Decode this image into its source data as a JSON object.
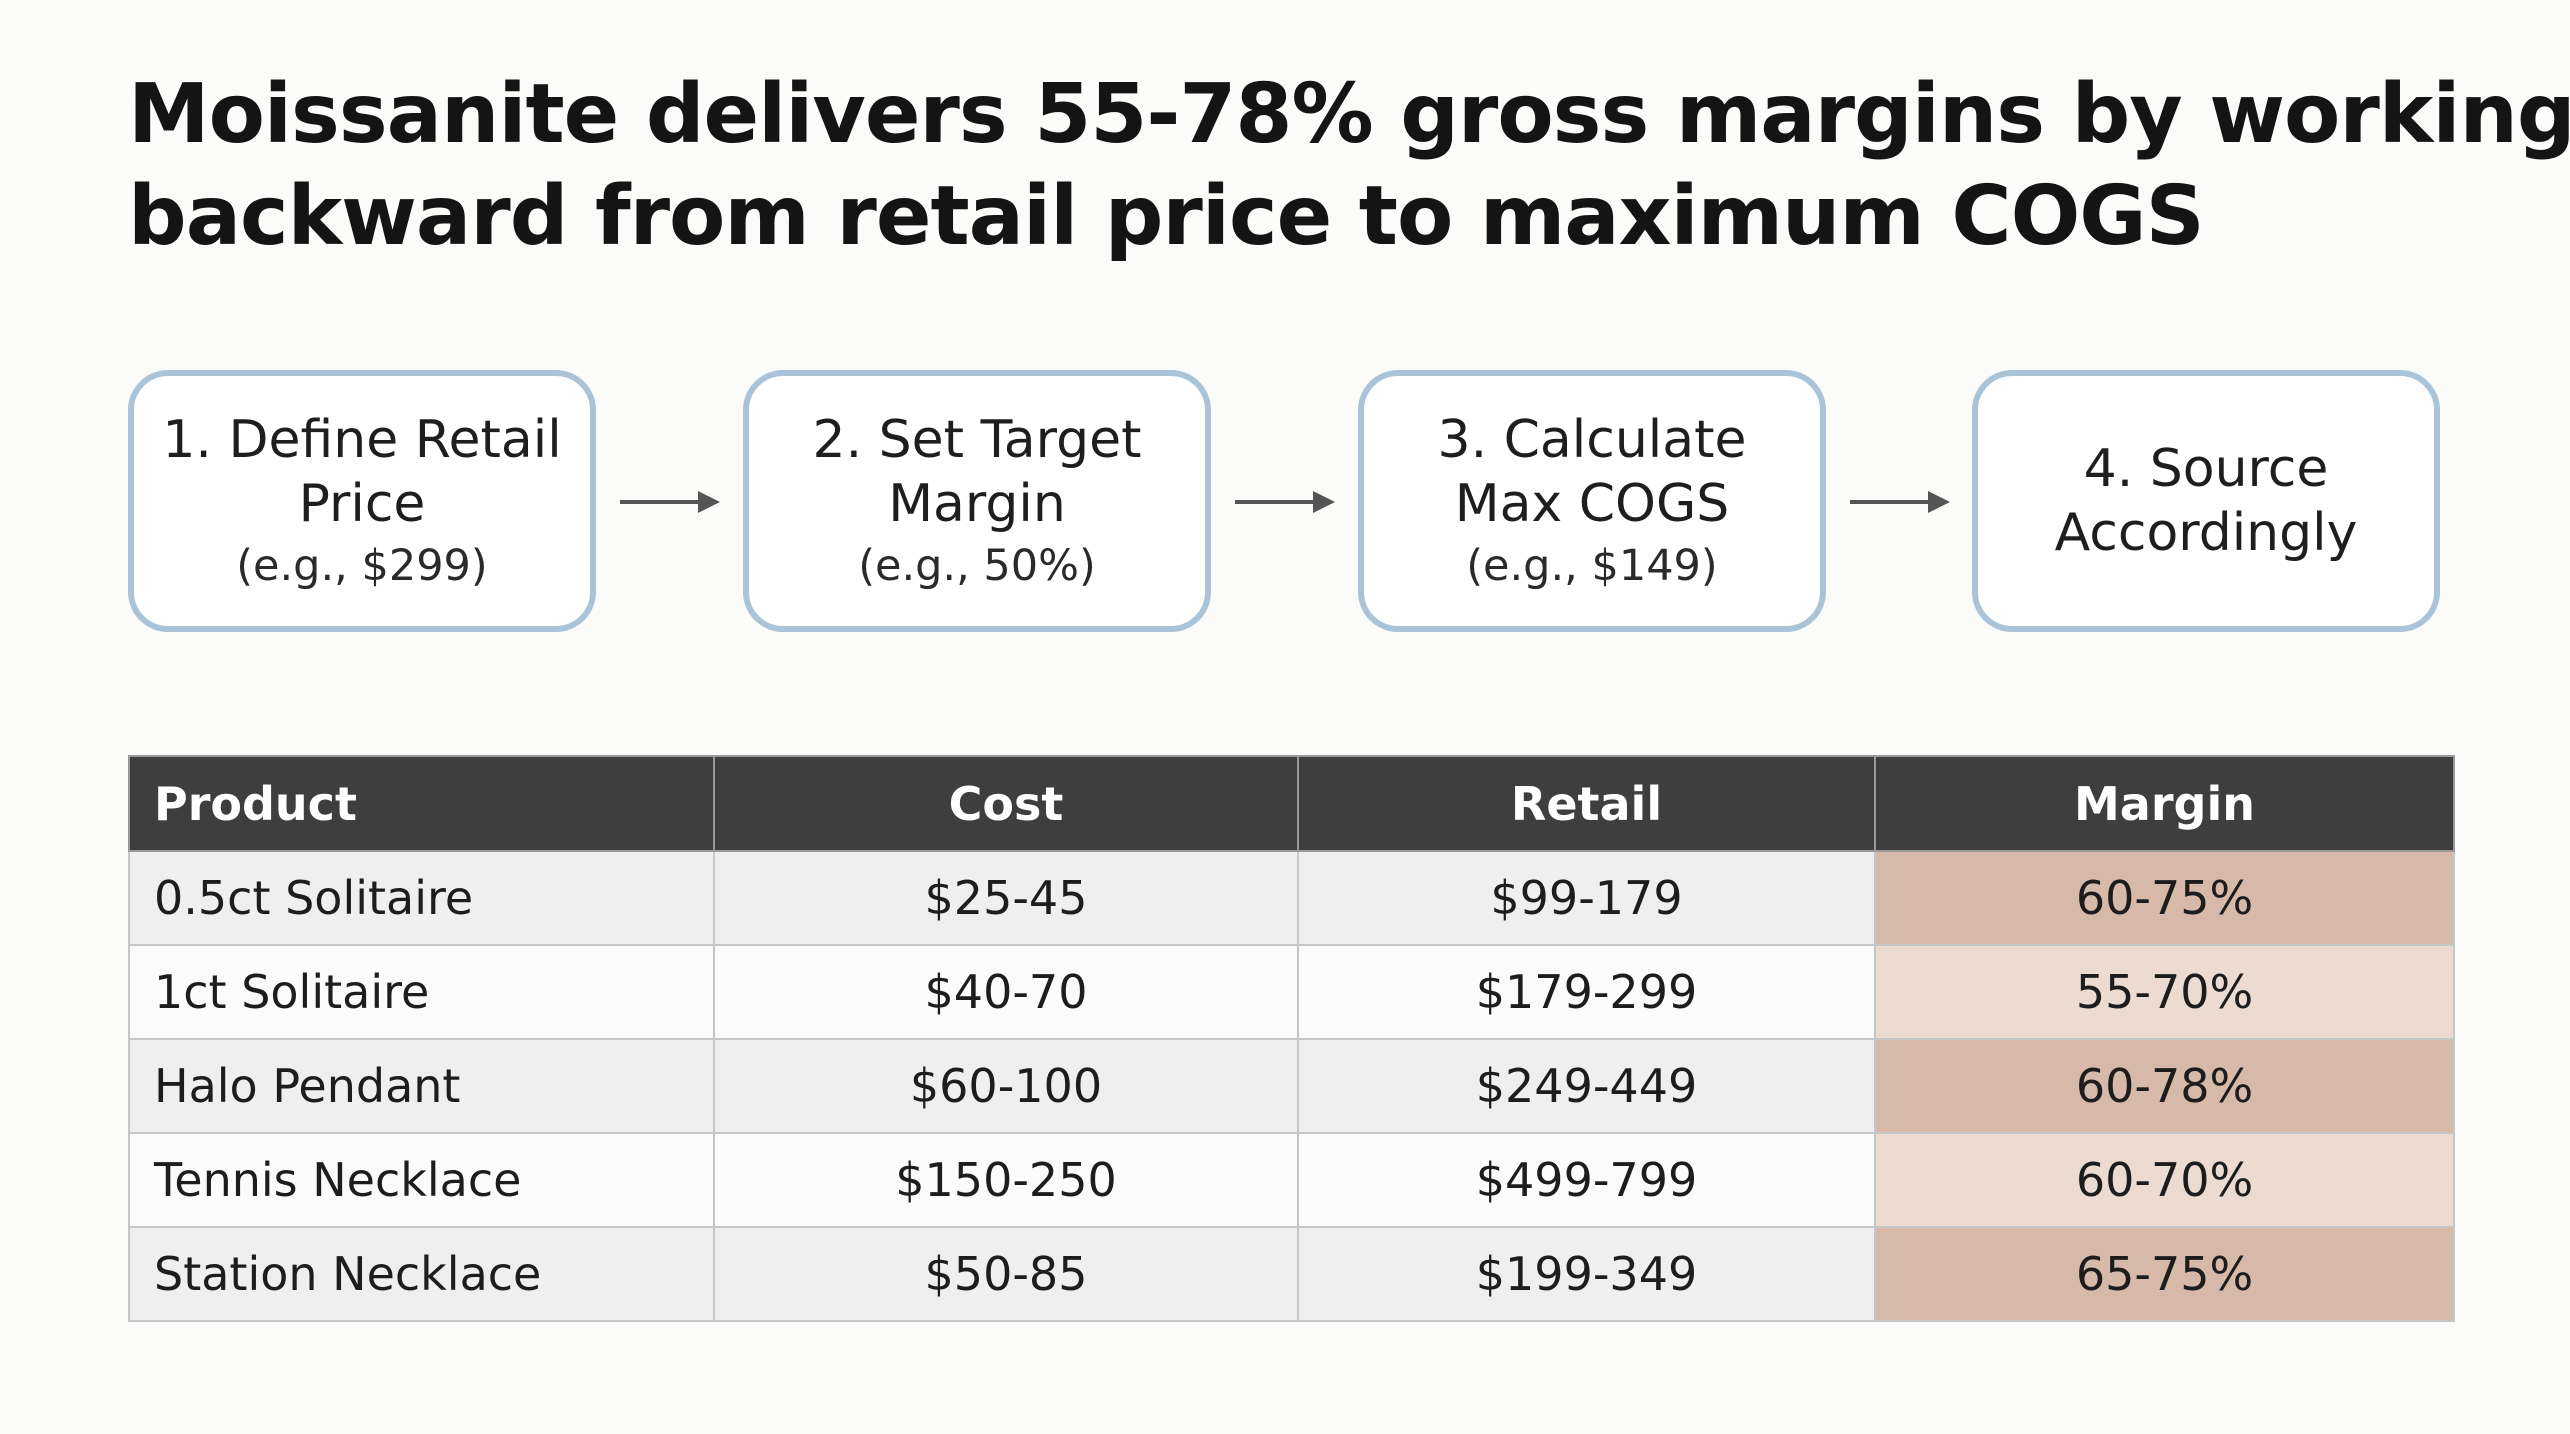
{
  "title": {
    "line1": "Moissanite delivers 55-78% gross margins by working",
    "line2": "backward from retail price to maximum COGS"
  },
  "steps": [
    {
      "title": "1. Define Retail\nPrice",
      "example": "(e.g., $299)"
    },
    {
      "title": "2. Set Target\nMargin",
      "example": "(e.g., 50%)"
    },
    {
      "title": "3. Calculate\nMax COGS",
      "example": "(e.g., $149)"
    },
    {
      "title": "4. Source\nAccordingly",
      "example": ""
    }
  ],
  "table": {
    "headers": [
      "Product",
      "Cost",
      "Retail",
      "Margin"
    ],
    "rows": [
      [
        "0.5ct Solitaire",
        "$25-45",
        "$99-179",
        "60-75%"
      ],
      [
        "1ct Solitaire",
        "$40-70",
        "$179-299",
        "55-70%"
      ],
      [
        "Halo Pendant",
        "$60-100",
        "$249-449",
        "60-78%"
      ],
      [
        "Tennis Necklace",
        "$150-250",
        "$499-799",
        "60-70%"
      ],
      [
        "Station Necklace",
        "$50-85",
        "$199-349",
        "65-75%"
      ]
    ]
  },
  "colors": {
    "step_border": "#a9c4d8",
    "header_bg": "#3e3e3e",
    "margin_dark": "#d7b9aa",
    "margin_light": "#ecdbd1",
    "arrow": "#555555"
  },
  "icons": {
    "flow_arrow": "right-arrow-icon"
  }
}
